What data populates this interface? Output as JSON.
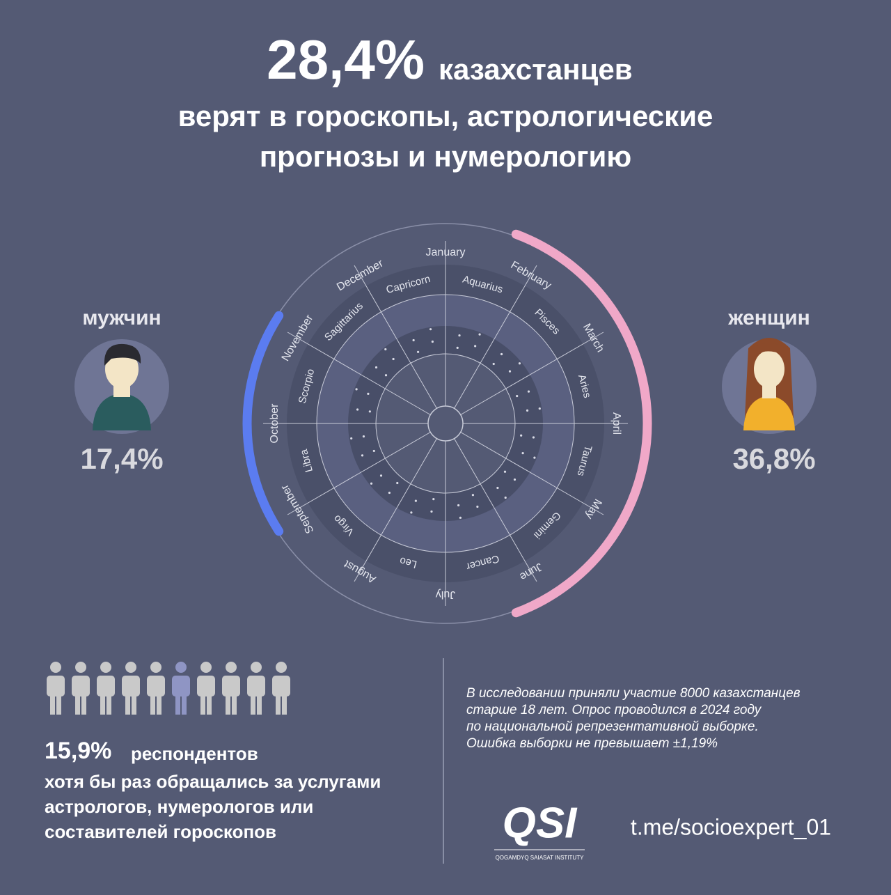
{
  "header": {
    "value": "28,4%",
    "title_rest": "казахстанцев",
    "subtitle_lines": [
      "верят в гороскопы, астрологические",
      "прогнозы и нумерологию"
    ]
  },
  "gender": [
    {
      "label": "мужчин",
      "value_label": "17,4%",
      "value": 17.4,
      "color": "#5b7cf0"
    },
    {
      "label": "женщин",
      "value_label": "36,8%",
      "value": 36.8,
      "color": "#f0a8c8"
    }
  ],
  "wheel": {
    "months": [
      "January",
      "February",
      "March",
      "April",
      "May",
      "June",
      "July",
      "August",
      "September",
      "October",
      "November",
      "December"
    ],
    "signs": [
      "Capricorn",
      "Aquarius",
      "Pisces",
      "Aries",
      "Taurus",
      "Gemini",
      "Cancer",
      "Leo",
      "Virgo",
      "Libra",
      "Scorpio",
      "Sagittarius"
    ]
  },
  "respondents": {
    "value": "15,9%",
    "title_rest": "респондентов",
    "lines": [
      "хотя бы раз обращались за услугами",
      "астрологов, нумерологов или",
      "составителей гороскопов"
    ]
  },
  "note_lines": [
    "В исследовании приняли участие 8000 казахстанцев",
    "старше 18 лет. Опрос проводился в 2024 году",
    "по национальной репрезентативной выборке.",
    "Ошибка выборки не превышает ±1,19%"
  ],
  "logo": {
    "text": "QSI",
    "subtitle": "QOGAMDYQ SAIASAT INSTITUTY"
  },
  "link": "t.me/socioexpert_01"
}
